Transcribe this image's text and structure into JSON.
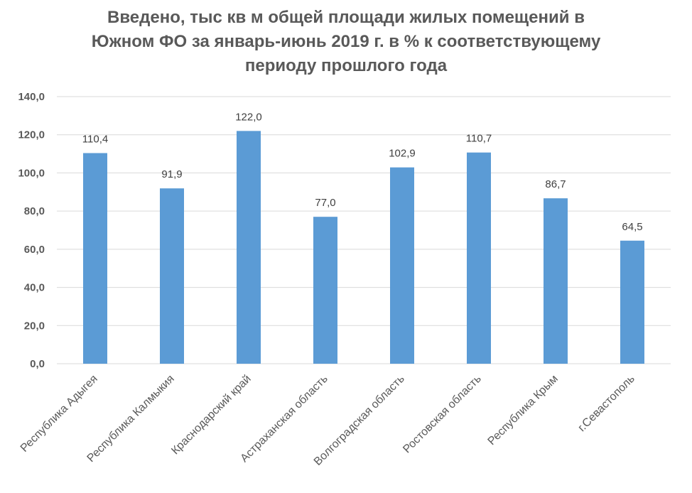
{
  "chart_data": {
    "type": "bar",
    "title_lines": [
      "Введено, тыс кв м общей площади жилых помещений в",
      "Южном ФО за январь-июнь 2019 г. в % к соответствующему",
      "периоду прошлого года"
    ],
    "categories": [
      "Республика  Адыгея",
      "Республика  Калмыкия",
      "Краснодарский  край",
      "Астраханская  область",
      "Волгоградская  область",
      "Ростовская  область",
      "Республика  Крым",
      "г.Севастополь"
    ],
    "values": [
      110.4,
      91.9,
      122.0,
      77.0,
      102.9,
      110.7,
      86.7,
      64.5
    ],
    "value_labels": [
      "110,4",
      "91,9",
      "122,0",
      "77,0",
      "102,9",
      "110,7",
      "86,7",
      "64,5"
    ],
    "ylim": [
      0,
      140
    ],
    "y_ticks": [
      0,
      20,
      40,
      60,
      80,
      100,
      120,
      140
    ],
    "y_tick_labels": [
      "0,0",
      "20,0",
      "40,0",
      "60,0",
      "80,0",
      "100,0",
      "120,0",
      "140,0"
    ],
    "xlabel": "",
    "ylabel": "",
    "grid": true,
    "legend": "none",
    "colors": {
      "bar": "#5b9bd5",
      "grid": "#d9d9d9",
      "axis_text": "#595959",
      "title": "#595959"
    }
  }
}
